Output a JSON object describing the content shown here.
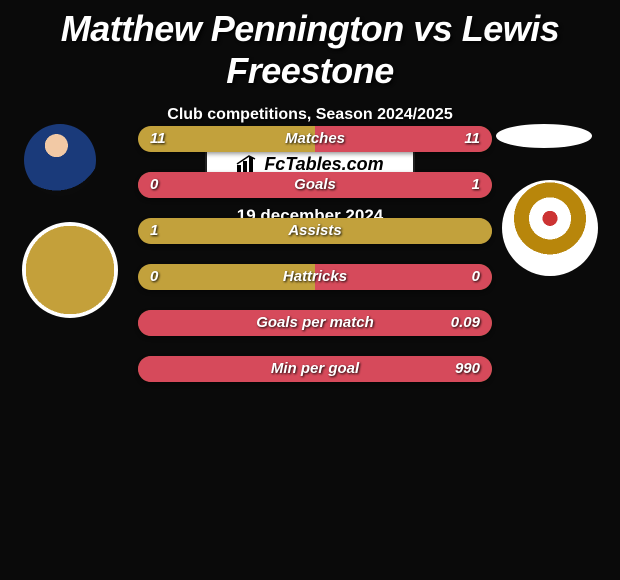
{
  "title": "Matthew Pennington vs Lewis Freestone",
  "subtitle": "Club competitions, Season 2024/2025",
  "branding": "FcTables.com",
  "date": "19 december 2024",
  "colors": {
    "left_bar": "#c2a13c",
    "right_bar": "#d64a5b",
    "bar_bg": "#8f7a30",
    "title_text": "#ffffff",
    "background": "#0a0a0a"
  },
  "stats": [
    {
      "label": "Matches",
      "left_val": "11",
      "right_val": "11",
      "left_pct": 50,
      "right_pct": 50
    },
    {
      "label": "Goals",
      "left_val": "0",
      "right_val": "1",
      "left_pct": 0,
      "right_pct": 100
    },
    {
      "label": "Assists",
      "left_val": "1",
      "right_val": "",
      "left_pct": 100,
      "right_pct": 0
    },
    {
      "label": "Hattricks",
      "left_val": "0",
      "right_val": "0",
      "left_pct": 50,
      "right_pct": 50
    },
    {
      "label": "Goals per match",
      "left_val": "",
      "right_val": "0.09",
      "left_pct": 0,
      "right_pct": 100
    },
    {
      "label": "Min per goal",
      "left_val": "",
      "right_val": "990",
      "left_pct": 0,
      "right_pct": 100
    }
  ]
}
